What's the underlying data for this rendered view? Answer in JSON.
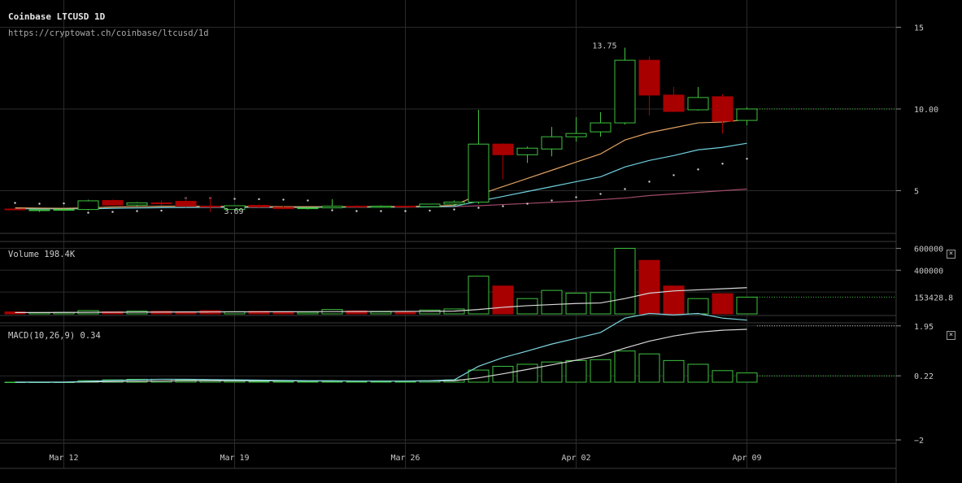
{
  "header": {
    "title": "Coinbase LTCUSD 1D",
    "url": "https://cryptowat.ch/coinbase/ltcusd/1d"
  },
  "colors": {
    "background": "#000000",
    "grid": "#2a2a2a",
    "up": "#3ec23e",
    "down": "#a80000",
    "ma_fast": "#e0a060",
    "ma_mid": "#6fd0e0",
    "ma_slow": "#a04a6a",
    "macd_line": "#7fd6e0",
    "signal_line": "#d8d8d8"
  },
  "price_pane": {
    "high_label": "13.75",
    "low_label": "3.69",
    "axis_ticks": [
      "15",
      "10.00",
      "5"
    ],
    "current_value": "10.00"
  },
  "volume_pane": {
    "label": "Volume",
    "value": "198.4K",
    "axis_ticks": [
      "600000",
      "400000"
    ],
    "current_value": "153428.8",
    "close_icon": "×"
  },
  "macd_pane": {
    "label": "MACD(10,26,9)",
    "value": "0.34",
    "axis_ticks": [
      "1.95",
      "0.22",
      "−2"
    ],
    "close_icon": "×"
  },
  "x_axis": {
    "labels": [
      "Mar 12",
      "Mar 19",
      "Mar 26",
      "Apr 02",
      "Apr 09"
    ]
  },
  "chart_data": {
    "type": "candlestick",
    "symbol": "LTCUSD",
    "start_date": "2020-03-10",
    "candles": [
      {
        "o": 3.88,
        "h": 3.96,
        "l": 3.8,
        "c": 3.85
      },
      {
        "o": 3.78,
        "h": 3.86,
        "l": 3.7,
        "c": 3.83
      },
      {
        "o": 3.82,
        "h": 3.9,
        "l": 3.78,
        "c": 3.85
      },
      {
        "o": 3.85,
        "h": 4.45,
        "l": 3.8,
        "c": 4.38
      },
      {
        "o": 4.4,
        "h": 4.45,
        "l": 4.1,
        "c": 4.12
      },
      {
        "o": 4.12,
        "h": 4.3,
        "l": 4.05,
        "c": 4.25
      },
      {
        "o": 4.25,
        "h": 4.4,
        "l": 4.1,
        "c": 4.2
      },
      {
        "o": 4.35,
        "h": 4.6,
        "l": 4.0,
        "c": 4.05
      },
      {
        "o": 4.05,
        "h": 4.6,
        "l": 3.69,
        "c": 4.02
      },
      {
        "o": 3.85,
        "h": 4.1,
        "l": 3.8,
        "c": 4.08
      },
      {
        "o": 4.1,
        "h": 4.15,
        "l": 3.95,
        "c": 4.0
      },
      {
        "o": 3.98,
        "h": 4.05,
        "l": 3.85,
        "c": 3.9
      },
      {
        "o": 3.9,
        "h": 4.0,
        "l": 3.85,
        "c": 3.95
      },
      {
        "o": 3.95,
        "h": 4.48,
        "l": 3.9,
        "c": 4.05
      },
      {
        "o": 4.05,
        "h": 4.1,
        "l": 3.95,
        "c": 4.0
      },
      {
        "o": 3.98,
        "h": 4.1,
        "l": 3.95,
        "c": 4.05
      },
      {
        "o": 4.05,
        "h": 4.08,
        "l": 3.98,
        "c": 4.02
      },
      {
        "o": 4.02,
        "h": 4.2,
        "l": 4.0,
        "c": 4.18
      },
      {
        "o": 4.18,
        "h": 4.4,
        "l": 4.1,
        "c": 4.3
      },
      {
        "o": 4.3,
        "h": 9.95,
        "l": 4.2,
        "c": 7.85
      },
      {
        "o": 7.85,
        "h": 7.9,
        "l": 5.7,
        "c": 7.2
      },
      {
        "o": 7.2,
        "h": 7.7,
        "l": 6.7,
        "c": 7.6
      },
      {
        "o": 7.55,
        "h": 8.9,
        "l": 7.1,
        "c": 8.3
      },
      {
        "o": 8.3,
        "h": 9.5,
        "l": 8.0,
        "c": 8.5
      },
      {
        "o": 8.6,
        "h": 9.8,
        "l": 8.3,
        "c": 9.15
      },
      {
        "o": 9.15,
        "h": 13.75,
        "l": 9.05,
        "c": 12.98
      },
      {
        "o": 12.98,
        "h": 13.2,
        "l": 9.6,
        "c": 10.85
      },
      {
        "o": 10.85,
        "h": 11.35,
        "l": 9.8,
        "c": 9.85
      },
      {
        "o": 9.95,
        "h": 11.35,
        "l": 9.9,
        "c": 10.7
      },
      {
        "o": 10.75,
        "h": 10.9,
        "l": 8.5,
        "c": 9.25
      },
      {
        "o": 9.3,
        "h": 10.1,
        "l": 9.0,
        "c": 10.0
      }
    ],
    "volumes": [
      18000,
      12000,
      14000,
      30000,
      20000,
      25000,
      24000,
      20000,
      30000,
      20000,
      24000,
      20000,
      15000,
      40000,
      28000,
      18000,
      22000,
      35000,
      45000,
      345000,
      255000,
      140000,
      215000,
      190000,
      195000,
      600000,
      490000,
      255000,
      140000,
      185000,
      153428.8
    ],
    "volume_sma": [
      12000,
      12000,
      13000,
      14000,
      15000,
      16000,
      17000,
      17500,
      18000,
      18500,
      19000,
      19500,
      20000,
      21000,
      21500,
      22000,
      22500,
      23000,
      25000,
      40000,
      60000,
      75000,
      85000,
      95000,
      100000,
      140000,
      190000,
      210000,
      220000,
      230000,
      240000
    ],
    "ma_fast": [
      3.95,
      3.93,
      3.92,
      3.95,
      4.0,
      4.02,
      4.05,
      4.05,
      4.04,
      4.04,
      4.03,
      4.02,
      4.02,
      4.02,
      4.02,
      4.03,
      4.03,
      4.05,
      4.1,
      4.75,
      5.25,
      5.75,
      6.25,
      6.75,
      7.25,
      8.1,
      8.55,
      8.85,
      9.15,
      9.2,
      9.35
    ],
    "ma_mid": [
      3.9,
      3.89,
      3.89,
      3.9,
      3.92,
      3.94,
      3.96,
      3.97,
      3.98,
      3.98,
      3.98,
      3.98,
      3.98,
      3.99,
      3.99,
      3.99,
      4.0,
      4.01,
      4.04,
      4.35,
      4.65,
      4.95,
      5.25,
      5.55,
      5.85,
      6.45,
      6.85,
      7.15,
      7.5,
      7.65,
      7.9
    ],
    "ma_slow_start_index": 15,
    "ma_slow": [
      4.0,
      4.0,
      4.01,
      4.02,
      4.08,
      4.15,
      4.22,
      4.29,
      4.36,
      4.45,
      4.55,
      4.7,
      4.8,
      4.9,
      5.0,
      5.1
    ],
    "dots": [
      4.25,
      4.2,
      4.22,
      3.65,
      3.7,
      3.75,
      3.78,
      4.55,
      4.55,
      4.5,
      4.48,
      4.45,
      4.4,
      3.8,
      3.75,
      3.75,
      3.75,
      3.78,
      3.85,
      3.95,
      4.05,
      4.2,
      4.4,
      4.6,
      4.8,
      5.1,
      5.55,
      5.95,
      6.3,
      6.65,
      6.95
    ],
    "macd": [
      0.0,
      0.0,
      0.0,
      0.03,
      0.06,
      0.08,
      0.1,
      0.1,
      0.09,
      0.08,
      0.07,
      0.06,
      0.05,
      0.05,
      0.04,
      0.04,
      0.04,
      0.05,
      0.08,
      0.55,
      0.85,
      1.08,
      1.32,
      1.52,
      1.72,
      2.22,
      2.38,
      2.33,
      2.38,
      2.22,
      2.15
    ],
    "signal": [
      0.0,
      0.0,
      0.0,
      0.01,
      0.02,
      0.03,
      0.04,
      0.05,
      0.05,
      0.05,
      0.05,
      0.05,
      0.04,
      0.04,
      0.04,
      0.04,
      0.04,
      0.04,
      0.05,
      0.15,
      0.29,
      0.44,
      0.6,
      0.76,
      0.92,
      1.18,
      1.42,
      1.6,
      1.73,
      1.8,
      1.83
    ],
    "histogram": [
      0.0,
      0.0,
      0.0,
      0.05,
      0.08,
      0.1,
      0.1,
      0.08,
      0.06,
      0.04,
      0.03,
      0.02,
      0.02,
      0.02,
      0.02,
      0.02,
      0.03,
      0.05,
      0.08,
      0.42,
      0.55,
      0.62,
      0.7,
      0.75,
      0.78,
      1.08,
      0.98,
      0.75,
      0.62,
      0.4,
      0.32
    ]
  }
}
